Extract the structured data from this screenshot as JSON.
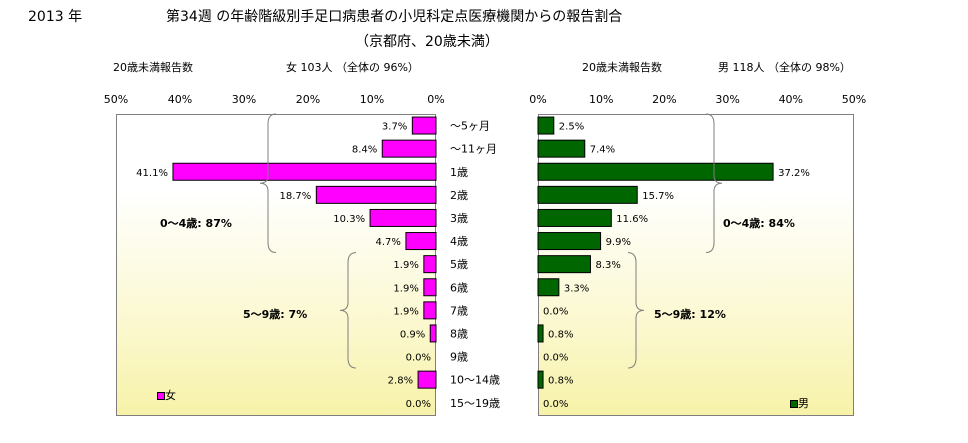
{
  "header": {
    "year": "2013 年",
    "title": "第34週 の年齢階級別手足口病患者の小児科定点医療機関からの報告割合",
    "subtitle": "（京都府、20歳未満）"
  },
  "left_panel": {
    "label": "20歳未満報告数",
    "summary": "女  103人  （全体の  96%）",
    "legend": "女",
    "bracket_0_4": "0〜4歳: 87%",
    "bracket_5_9": "5〜9歳:  7%"
  },
  "right_panel": {
    "label": "20歳未満報告数",
    "summary": "男  118人  （全体の  98%）",
    "legend": "男",
    "bracket_0_4": "0〜4歳: 84%",
    "bracket_5_9": "5〜9歳:  12%"
  },
  "colors": {
    "female": "#ff00ff",
    "male": "#006600",
    "bar_outline": "#000000",
    "plot_border": "#7f7f7f"
  },
  "chart_data": [
    {
      "type": "bar",
      "orientation": "horizontal",
      "direction": "right-to-left",
      "categories": [
        "〜5ヶ月",
        "〜11ヶ月",
        "1歳",
        "2歳",
        "3歳",
        "4歳",
        "5歳",
        "6歳",
        "7歳",
        "8歳",
        "9歳",
        "10〜14歳",
        "15〜19歳"
      ],
      "series": [
        {
          "name": "女",
          "values": [
            3.7,
            8.4,
            41.1,
            18.7,
            10.3,
            4.7,
            1.9,
            1.9,
            1.9,
            0.9,
            0.0,
            2.8,
            0.0
          ]
        }
      ],
      "value_labels": [
        "3.7%",
        "8.4%",
        "41.1%",
        "18.7%",
        "10.3%",
        "4.7%",
        "1.9%",
        "1.9%",
        "1.9%",
        "0.9%",
        "0.0%",
        "2.8%",
        "0.0%"
      ],
      "xlim": [
        0,
        50
      ],
      "x_ticks": [
        "0%",
        "10%",
        "20%",
        "30%",
        "40%",
        "50%"
      ],
      "legend_position": "bottom-left"
    },
    {
      "type": "bar",
      "orientation": "horizontal",
      "direction": "left-to-right",
      "categories": [
        "〜5ヶ月",
        "〜11ヶ月",
        "1歳",
        "2歳",
        "3歳",
        "4歳",
        "5歳",
        "6歳",
        "7歳",
        "8歳",
        "9歳",
        "10〜14歳",
        "15〜19歳"
      ],
      "series": [
        {
          "name": "男",
          "values": [
            2.5,
            7.4,
            37.2,
            15.7,
            11.6,
            9.9,
            8.3,
            3.3,
            0.0,
            0.8,
            0.0,
            0.8,
            0.0
          ]
        }
      ],
      "value_labels": [
        "2.5%",
        "7.4%",
        "37.2%",
        "15.7%",
        "11.6%",
        "9.9%",
        "8.3%",
        "3.3%",
        "0.0%",
        "0.8%",
        "0.0%",
        "0.8%",
        "0.0%"
      ],
      "xlim": [
        0,
        50
      ],
      "x_ticks": [
        "0%",
        "10%",
        "20%",
        "30%",
        "40%",
        "50%"
      ],
      "legend_position": "bottom-right"
    }
  ]
}
